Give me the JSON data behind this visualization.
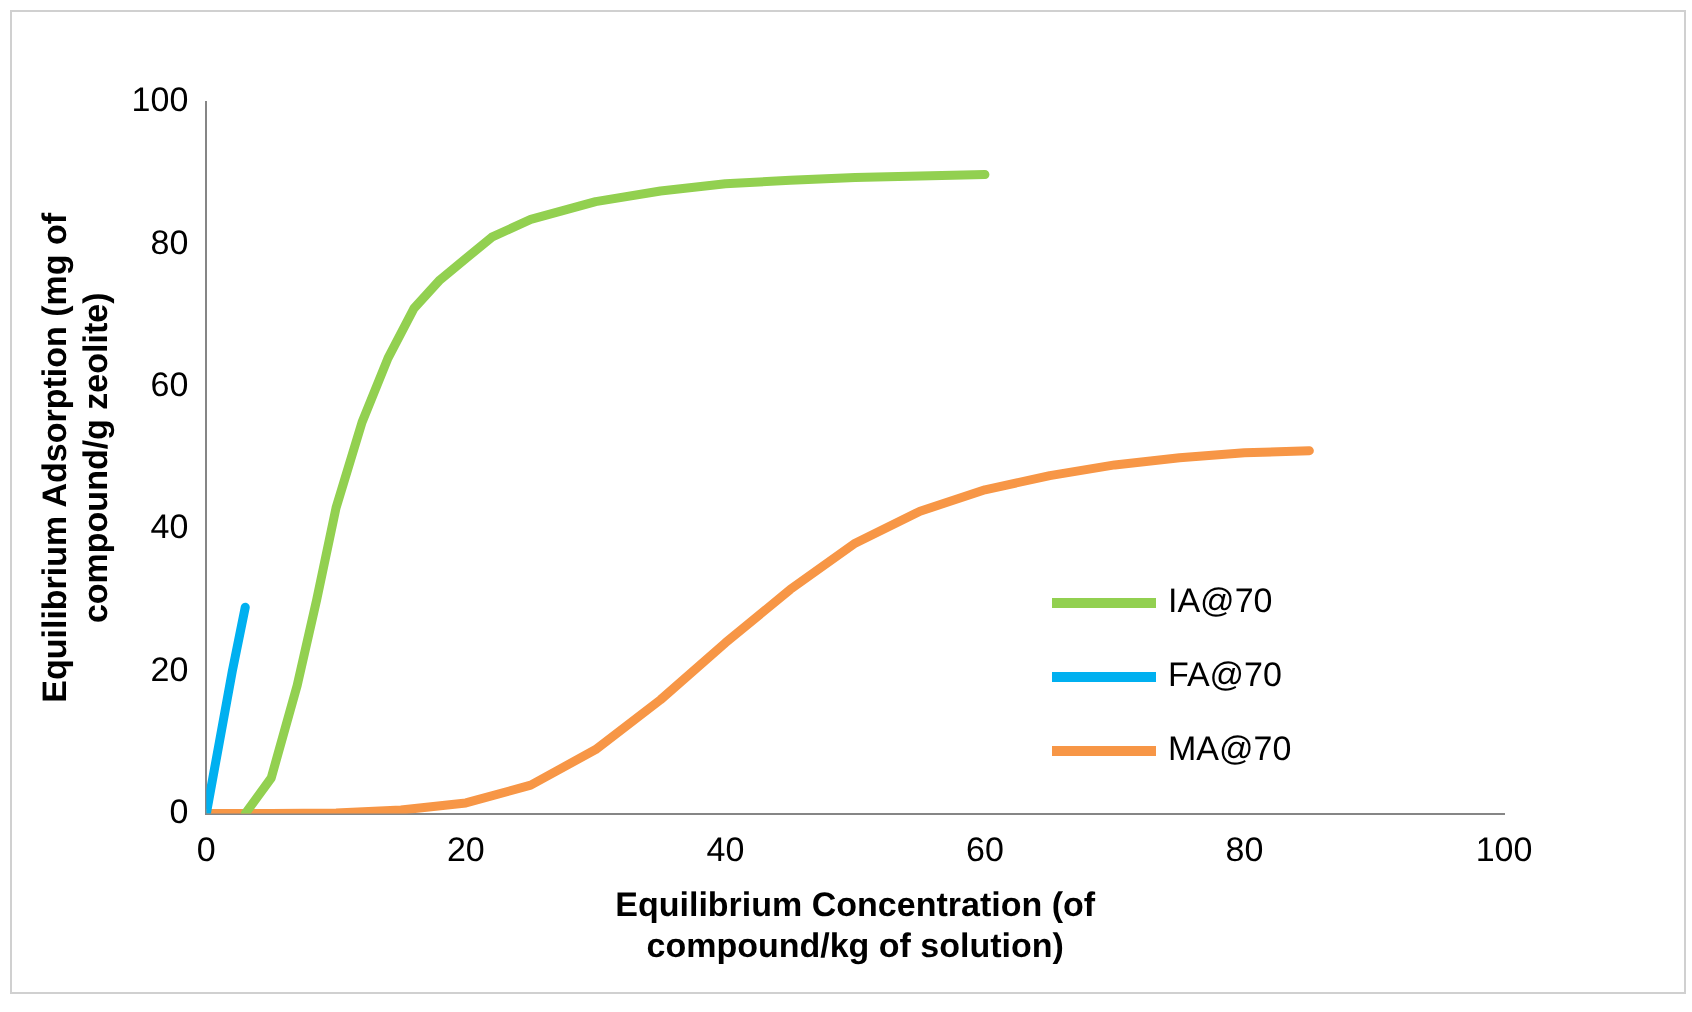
{
  "chart_data": {
    "type": "line",
    "xlabel": "Equilibrium Concentration (of compound/kg of solution)",
    "ylabel": "Equilibrium Adsorption (mg of compound/g zeolite)",
    "xlim": [
      0,
      100
    ],
    "xticks": [
      0,
      20,
      40,
      60,
      80,
      100
    ],
    "ylim": [
      0,
      100
    ],
    "yticks": [
      0,
      20,
      40,
      60,
      80,
      100
    ],
    "grid": false,
    "legend": "right",
    "marker": "none",
    "line_style": "solid",
    "series": [
      {
        "name": "IA@70",
        "color": "#92d050",
        "x": [
          3,
          5,
          7,
          8.5,
          10,
          12,
          14,
          16,
          18,
          20,
          22,
          25,
          30,
          35,
          40,
          45,
          50,
          55,
          60
        ],
        "values": [
          0,
          5,
          18,
          30,
          43,
          55,
          64,
          71,
          75,
          78,
          81,
          83.5,
          86,
          87.5,
          88.5,
          89,
          89.4,
          89.6,
          89.8
        ]
      },
      {
        "name": "FA@70",
        "color": "#00b0f0",
        "x": [
          0,
          1,
          2,
          3
        ],
        "values": [
          0,
          10,
          20,
          29
        ]
      },
      {
        "name": "MA@70",
        "color": "#f79646",
        "x": [
          0,
          5,
          10,
          15,
          20,
          25,
          30,
          35,
          40,
          45,
          50,
          55,
          60,
          65,
          70,
          75,
          80,
          85
        ],
        "values": [
          0,
          0,
          0.1,
          0.5,
          1.5,
          4,
          9,
          16,
          24,
          31.5,
          38,
          42.5,
          45.5,
          47.5,
          49,
          50,
          50.7,
          51
        ]
      }
    ]
  }
}
